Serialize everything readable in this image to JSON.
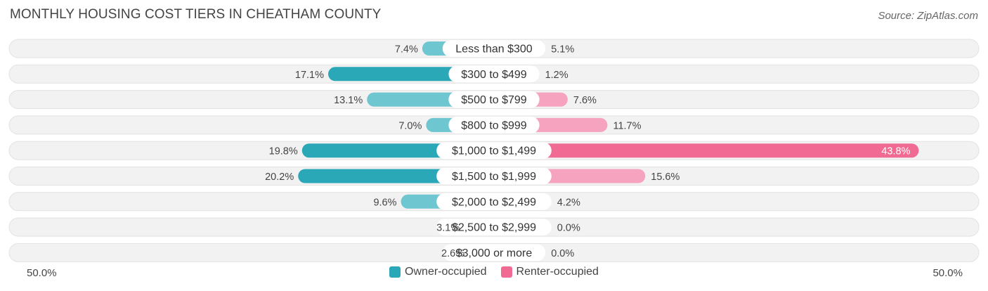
{
  "header": {
    "title": "MONTHLY HOUSING COST TIERS IN CHEATHAM COUNTY",
    "source": "Source: ZipAtlas.com"
  },
  "colors": {
    "owner_strong": "#2aa8b8",
    "owner_light": "#6ec6d0",
    "renter_strong": "#f06a94",
    "renter_light": "#f5a3bf",
    "row_bg": "#f2f2f2",
    "row_border": "#e2e2e2"
  },
  "chart_data": {
    "type": "bar",
    "orientation": "horizontal-diverging",
    "categories": [
      "Less than $300",
      "$300 to $499",
      "$500 to $799",
      "$800 to $999",
      "$1,000 to $1,499",
      "$1,500 to $1,999",
      "$2,000 to $2,499",
      "$2,500 to $2,999",
      "$3,000 or more"
    ],
    "series": [
      {
        "name": "Owner-occupied",
        "values": [
          7.4,
          17.1,
          13.1,
          7.0,
          19.8,
          20.2,
          9.6,
          3.1,
          2.6
        ]
      },
      {
        "name": "Renter-occupied",
        "values": [
          5.1,
          1.2,
          7.6,
          11.7,
          43.8,
          15.6,
          4.2,
          0.0,
          0.0
        ]
      }
    ],
    "value_labels": {
      "owner": [
        "7.4%",
        "17.1%",
        "13.1%",
        "7.0%",
        "19.8%",
        "20.2%",
        "9.6%",
        "3.1%",
        "2.6%"
      ],
      "renter": [
        "5.1%",
        "1.2%",
        "7.6%",
        "11.7%",
        "43.8%",
        "15.6%",
        "4.2%",
        "0.0%",
        "0.0%"
      ]
    },
    "axis": {
      "left_label": "50.0%",
      "right_label": "50.0%",
      "max": 50
    },
    "legend": {
      "position": "bottom-center",
      "items": [
        "Owner-occupied",
        "Renter-occupied"
      ]
    }
  }
}
